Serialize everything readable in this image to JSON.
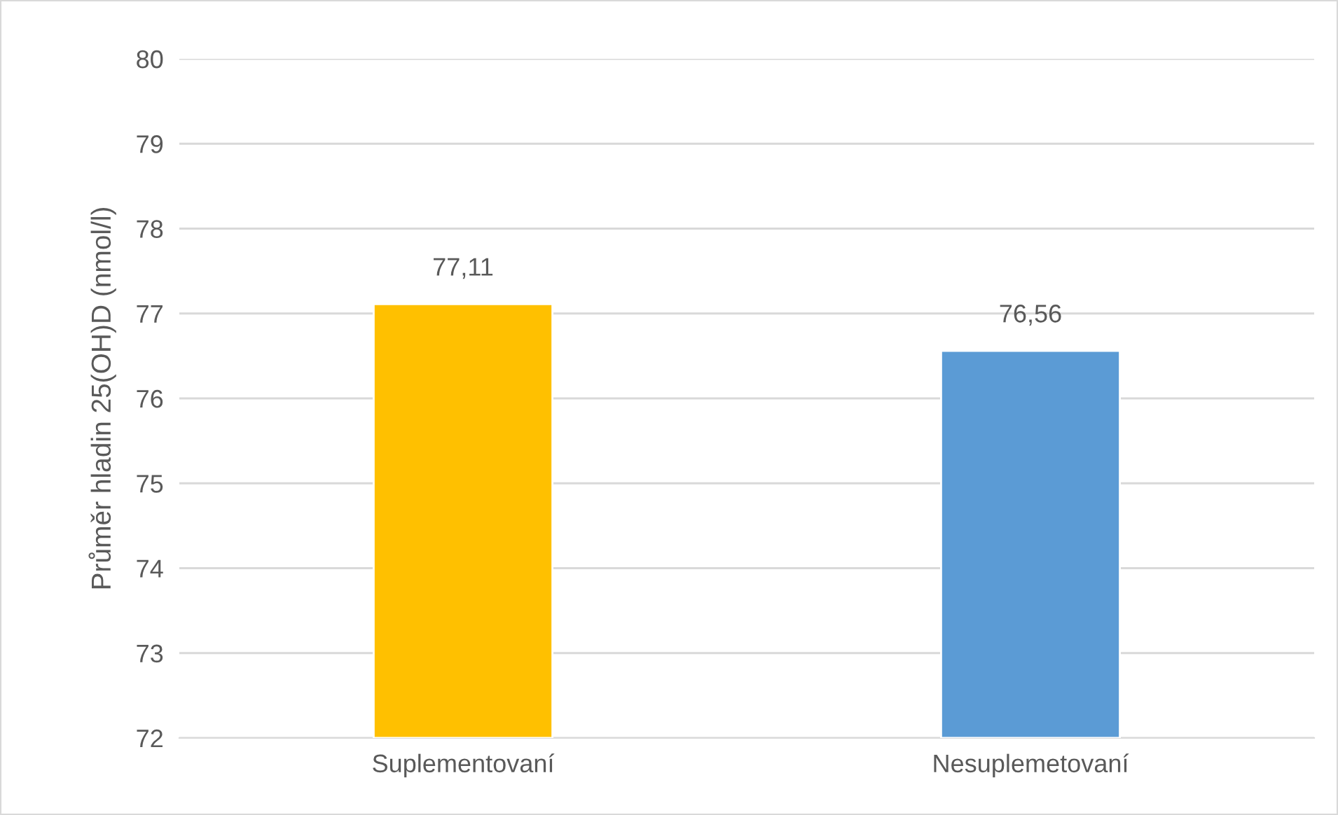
{
  "chart_data": {
    "type": "bar",
    "ylabel": "Průměr hladin 25(OH)D (nmol/l)",
    "categories": [
      "Suplementovaní",
      "Nesuplemetovaní"
    ],
    "values": [
      77.11,
      76.56
    ],
    "colors": [
      "#ffc000",
      "#5b9bd5"
    ],
    "value_labels": [
      "77,11",
      "76,56"
    ],
    "ylim": [
      72,
      80
    ],
    "yticks": [
      72,
      73,
      74,
      75,
      76,
      77,
      78,
      79,
      80
    ],
    "grid": "y",
    "legend": false
  }
}
